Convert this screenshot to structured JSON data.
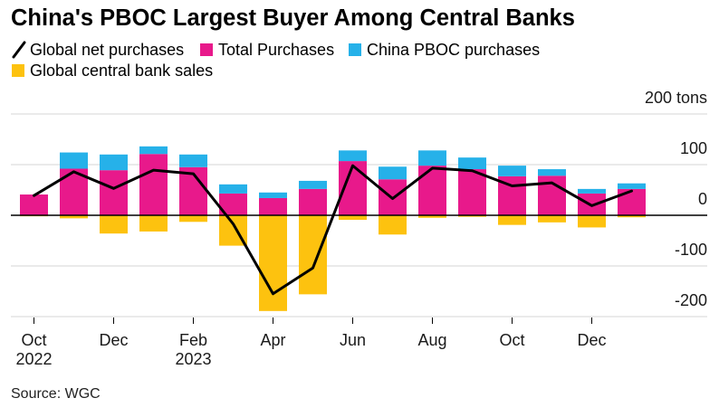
{
  "chart_data": {
    "type": "bar",
    "title": "China's PBOC Largest Buyer Among Central Banks",
    "x": [
      "2022-10",
      "2022-11",
      "2022-12",
      "2023-01",
      "2023-02",
      "2023-03",
      "2023-04",
      "2023-05",
      "2023-06",
      "2023-07",
      "2023-08",
      "2023-09",
      "2023-10",
      "2023-11",
      "2023-12",
      "2024-01"
    ],
    "series": [
      {
        "name": "Global net purchases",
        "type": "line",
        "color": "#000000",
        "values": [
          39,
          86,
          53,
          89,
          82,
          -17,
          -155,
          -104,
          98,
          33,
          93,
          88,
          58,
          64,
          19,
          48
        ]
      },
      {
        "name": "Total Purchases",
        "type": "bar",
        "color": "#E8198B",
        "values": [
          41,
          92,
          89,
          121,
          95,
          43,
          34,
          52,
          107,
          71,
          98,
          91,
          77,
          78,
          43,
          52
        ]
      },
      {
        "name": "China PBOC purchases",
        "type": "bar",
        "color": "#26B1E9",
        "values": [
          0,
          32,
          31,
          15,
          25,
          18,
          11,
          16,
          21,
          25,
          30,
          23,
          21,
          13,
          9,
          11
        ]
      },
      {
        "name": "Global central bank sales",
        "type": "bar",
        "color": "#FDC20F",
        "values": [
          -2,
          -6,
          -36,
          -32,
          -13,
          -60,
          -189,
          -156,
          -9,
          -38,
          -5,
          -3,
          -19,
          -14,
          -24,
          -4
        ]
      }
    ],
    "ylim": [
      -200,
      200
    ],
    "yticks": [
      {
        "value": 200,
        "label": "200 tons"
      },
      {
        "value": 100,
        "label": "100"
      },
      {
        "value": 0,
        "label": "0"
      },
      {
        "value": -100,
        "label": "-100"
      },
      {
        "value": -200,
        "label": "-200"
      }
    ],
    "xticks": [
      {
        "x": "2022-10",
        "label": "Oct",
        "year": "2022"
      },
      {
        "x": "2022-12",
        "label": "Dec"
      },
      {
        "x": "2023-02",
        "label": "Feb",
        "year": "2023"
      },
      {
        "x": "2023-04",
        "label": "Apr"
      },
      {
        "x": "2023-06",
        "label": "Jun"
      },
      {
        "x": "2023-08",
        "label": "Aug"
      },
      {
        "x": "2023-10",
        "label": "Oct"
      },
      {
        "x": "2023-12",
        "label": "Dec"
      }
    ],
    "grid": true,
    "legend": "top-left"
  },
  "source": "Source: WGC"
}
